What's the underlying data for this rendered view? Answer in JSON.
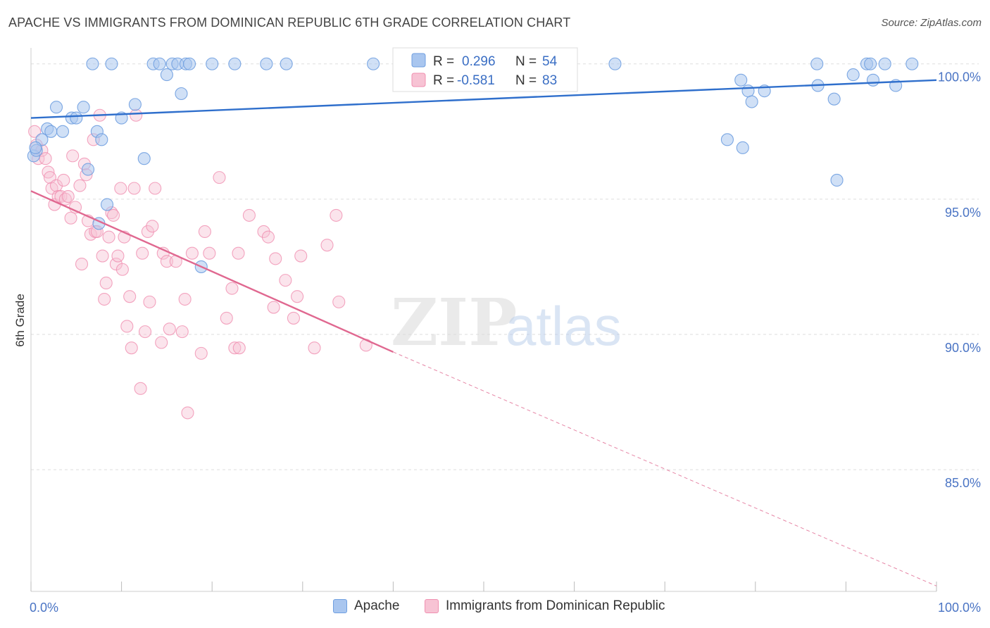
{
  "title": "APACHE VS IMMIGRANTS FROM DOMINICAN REPUBLIC 6TH GRADE CORRELATION CHART",
  "source": "Source: ZipAtlas.com",
  "watermark": {
    "zip": "ZIP",
    "atlas": "atlas"
  },
  "colors": {
    "apache": "#6f9fe0",
    "apache_fill": "#a9c6ef",
    "apache_line": "#2f6fcc",
    "dominican": "#f08fb0",
    "dominican_fill": "#f7c3d4",
    "dominican_line": "#e06890",
    "tick": "#4a74c4",
    "grid": "#dddddd"
  },
  "legend": {
    "apache": {
      "r_label": "R =",
      "r_value": "0.296",
      "n_label": "N =",
      "n_value": "54"
    },
    "dominican": {
      "r_label": "R =",
      "r_value": "-0.581",
      "n_label": "N =",
      "n_value": "83"
    }
  },
  "bottom_legend": {
    "apache": "Apache",
    "dominican": "Immigrants from Dominican Republic"
  },
  "chart_data": {
    "type": "scatter",
    "title": "APACHE VS IMMIGRANTS FROM DOMINICAN REPUBLIC 6TH GRADE CORRELATION CHART",
    "xlabel": "",
    "ylabel": "6th Grade",
    "xlim": [
      0,
      100
    ],
    "ylim": [
      80.5,
      100.8
    ],
    "x_ticks": [
      "0.0%",
      "100.0%"
    ],
    "y_ticks": [
      {
        "value": 100,
        "label": "100.0%"
      },
      {
        "value": 95,
        "label": "95.0%"
      },
      {
        "value": 90,
        "label": "90.0%"
      },
      {
        "value": 85,
        "label": "85.0%"
      }
    ],
    "grid": true,
    "legend_position": "top-center",
    "series": [
      {
        "name": "Apache",
        "R": 0.296,
        "N": 54,
        "trend": {
          "x": [
            0,
            100
          ],
          "y": [
            98.0,
            99.4
          ]
        },
        "points": [
          [
            0.3,
            96.6
          ],
          [
            0.6,
            96.8
          ],
          [
            1.2,
            97.2
          ],
          [
            1.8,
            97.6
          ],
          [
            2.2,
            97.5
          ],
          [
            2.8,
            98.4
          ],
          [
            3.5,
            97.5
          ],
          [
            4.5,
            98.0
          ],
          [
            5.0,
            98.0
          ],
          [
            5.8,
            98.4
          ],
          [
            6.3,
            96.1
          ],
          [
            7.3,
            97.5
          ],
          [
            7.8,
            97.2
          ],
          [
            8.4,
            94.8
          ],
          [
            7.5,
            94.1
          ],
          [
            6.8,
            100.0
          ],
          [
            8.9,
            100.0
          ],
          [
            10.0,
            98.0
          ],
          [
            11.5,
            98.5
          ],
          [
            12.5,
            96.5
          ],
          [
            13.5,
            100.0
          ],
          [
            14.2,
            100.0
          ],
          [
            15.0,
            99.6
          ],
          [
            15.6,
            100.0
          ],
          [
            16.2,
            100.0
          ],
          [
            16.6,
            98.9
          ],
          [
            17.1,
            100.0
          ],
          [
            17.5,
            100.0
          ],
          [
            18.8,
            92.5
          ],
          [
            20.0,
            100.0
          ],
          [
            22.5,
            100.0
          ],
          [
            26.0,
            100.0
          ],
          [
            28.2,
            100.0
          ],
          [
            37.8,
            100.0
          ],
          [
            59.2,
            100.0
          ],
          [
            64.5,
            100.0
          ],
          [
            76.9,
            97.2
          ],
          [
            78.6,
            96.9
          ],
          [
            78.4,
            99.4
          ],
          [
            79.2,
            99.0
          ],
          [
            79.6,
            98.6
          ],
          [
            81.0,
            99.0
          ],
          [
            86.8,
            100.0
          ],
          [
            86.9,
            99.2
          ],
          [
            88.7,
            98.7
          ],
          [
            89.0,
            95.7
          ],
          [
            90.8,
            99.6
          ],
          [
            92.3,
            100.0
          ],
          [
            92.7,
            100.0
          ],
          [
            93.0,
            99.4
          ],
          [
            94.3,
            100.0
          ],
          [
            95.5,
            99.2
          ],
          [
            97.3,
            100.0
          ],
          [
            0.5,
            96.9
          ]
        ]
      },
      {
        "name": "Immigrants from Dominican Republic",
        "R": -0.581,
        "N": 83,
        "trend": {
          "x": [
            0,
            40
          ],
          "y": [
            95.3,
            89.35
          ]
        },
        "trend_dashed": {
          "x": [
            40,
            100
          ],
          "y": [
            89.35,
            80.7
          ]
        },
        "points": [
          [
            0.4,
            97.5
          ],
          [
            0.6,
            97.0
          ],
          [
            0.8,
            96.5
          ],
          [
            1.2,
            96.8
          ],
          [
            1.6,
            96.5
          ],
          [
            1.9,
            96.0
          ],
          [
            2.1,
            95.8
          ],
          [
            2.3,
            95.4
          ],
          [
            2.6,
            94.8
          ],
          [
            2.8,
            95.5
          ],
          [
            3.0,
            95.1
          ],
          [
            3.3,
            95.1
          ],
          [
            3.6,
            95.7
          ],
          [
            3.8,
            95.0
          ],
          [
            4.1,
            95.1
          ],
          [
            4.4,
            94.3
          ],
          [
            4.6,
            96.6
          ],
          [
            4.9,
            94.7
          ],
          [
            5.4,
            95.5
          ],
          [
            5.6,
            92.6
          ],
          [
            5.9,
            96.3
          ],
          [
            6.1,
            95.9
          ],
          [
            6.3,
            94.2
          ],
          [
            6.6,
            93.7
          ],
          [
            6.9,
            97.2
          ],
          [
            7.1,
            93.8
          ],
          [
            7.3,
            93.8
          ],
          [
            7.6,
            98.1
          ],
          [
            7.9,
            92.9
          ],
          [
            8.1,
            91.3
          ],
          [
            8.3,
            91.9
          ],
          [
            8.6,
            93.6
          ],
          [
            8.9,
            94.5
          ],
          [
            9.1,
            94.4
          ],
          [
            9.4,
            92.6
          ],
          [
            9.6,
            92.9
          ],
          [
            9.9,
            95.4
          ],
          [
            10.1,
            92.4
          ],
          [
            10.3,
            93.6
          ],
          [
            10.6,
            90.3
          ],
          [
            10.9,
            91.4
          ],
          [
            11.1,
            89.5
          ],
          [
            11.4,
            95.4
          ],
          [
            11.6,
            98.1
          ],
          [
            12.1,
            88.0
          ],
          [
            12.3,
            93.0
          ],
          [
            12.6,
            90.1
          ],
          [
            12.9,
            93.8
          ],
          [
            13.1,
            91.2
          ],
          [
            13.4,
            94.0
          ],
          [
            13.7,
            95.4
          ],
          [
            14.4,
            89.7
          ],
          [
            14.6,
            93.0
          ],
          [
            15.0,
            92.7
          ],
          [
            15.3,
            90.2
          ],
          [
            16.0,
            92.7
          ],
          [
            16.7,
            90.1
          ],
          [
            17.0,
            91.3
          ],
          [
            17.3,
            87.1
          ],
          [
            17.8,
            93.0
          ],
          [
            18.8,
            89.3
          ],
          [
            19.2,
            93.8
          ],
          [
            19.7,
            93.0
          ],
          [
            20.8,
            95.8
          ],
          [
            21.6,
            90.6
          ],
          [
            22.2,
            91.7
          ],
          [
            22.9,
            93.0
          ],
          [
            22.5,
            89.5
          ],
          [
            23.0,
            89.5
          ],
          [
            24.1,
            94.4
          ],
          [
            25.7,
            93.8
          ],
          [
            26.2,
            93.6
          ],
          [
            26.8,
            91.0
          ],
          [
            27.0,
            92.8
          ],
          [
            28.1,
            92.0
          ],
          [
            29.0,
            90.6
          ],
          [
            29.4,
            91.4
          ],
          [
            29.8,
            92.9
          ],
          [
            31.3,
            89.5
          ],
          [
            32.7,
            93.3
          ],
          [
            33.7,
            94.4
          ],
          [
            34.0,
            91.2
          ],
          [
            37.0,
            89.6
          ]
        ]
      }
    ]
  }
}
